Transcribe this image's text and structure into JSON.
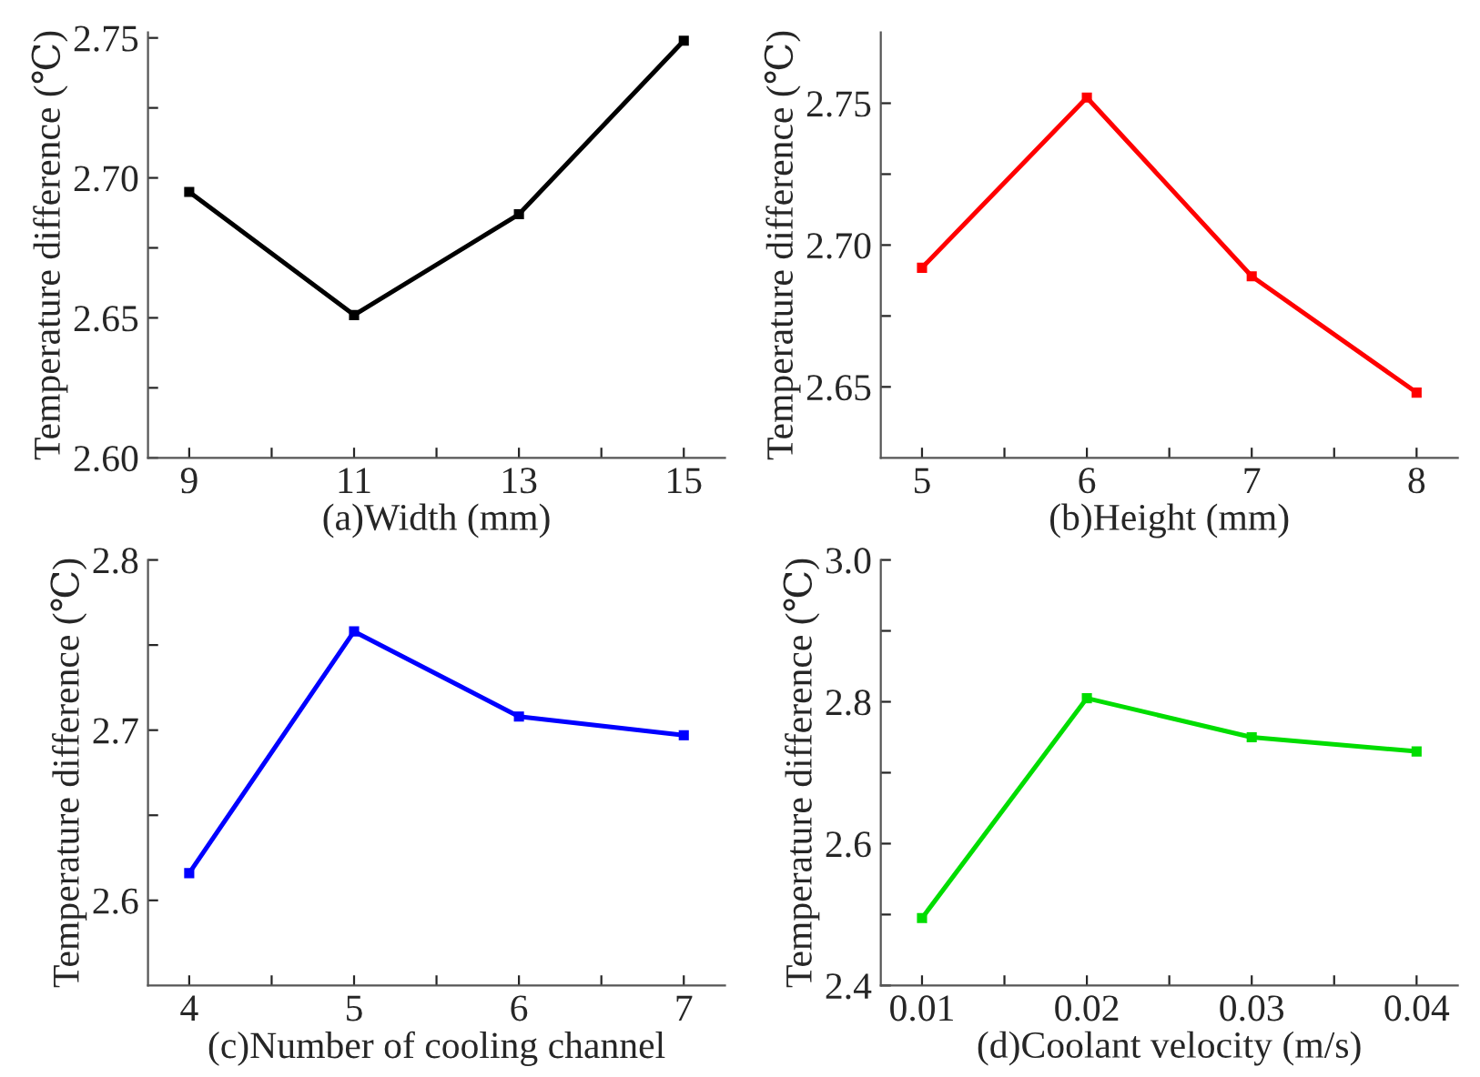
{
  "chart_data": [
    {
      "type": "line",
      "xlabel": "(a)Width (mm)",
      "ylabel": "Temperature difference (℃)",
      "x": [
        9,
        11,
        13,
        15
      ],
      "series": [
        {
          "color": "#000000",
          "values": [
            2.695,
            2.651,
            2.687,
            2.749
          ]
        }
      ],
      "marker": "square",
      "xlim": [
        8.5,
        15.5
      ],
      "ylim": [
        2.6,
        2.752
      ],
      "xticks": [
        9,
        {
          "value": 10,
          "label": null
        },
        11,
        {
          "value": 12,
          "label": null
        },
        13,
        {
          "value": 14,
          "label": null
        },
        15
      ],
      "yticks": [
        {
          "value": 2.6,
          "label": "2.60"
        },
        {
          "value": 2.625,
          "label": null
        },
        {
          "value": 2.65,
          "label": "2.65"
        },
        {
          "value": 2.675,
          "label": null
        },
        {
          "value": 2.7,
          "label": "2.70"
        },
        {
          "value": 2.725,
          "label": null
        },
        {
          "value": 2.75,
          "label": "2.75"
        }
      ]
    },
    {
      "type": "line",
      "xlabel": "(b)Height (mm)",
      "ylabel": "Temperature difference (℃)",
      "x": [
        5,
        6,
        7,
        8
      ],
      "series": [
        {
          "color": "#ff0000",
          "values": [
            2.692,
            2.752,
            2.689,
            2.648
          ]
        }
      ],
      "marker": "square",
      "xlim": [
        4.75,
        8.25
      ],
      "ylim": [
        2.625,
        2.775
      ],
      "xticks": [
        5,
        {
          "value": 5.5,
          "label": null
        },
        6,
        {
          "value": 6.5,
          "label": null
        },
        7,
        {
          "value": 7.5,
          "label": null
        },
        8
      ],
      "yticks": [
        {
          "value": 2.65,
          "label": "2.65"
        },
        {
          "value": 2.675,
          "label": null
        },
        {
          "value": 2.7,
          "label": "2.70"
        },
        {
          "value": 2.725,
          "label": null
        },
        {
          "value": 2.75,
          "label": "2.75"
        }
      ]
    },
    {
      "type": "line",
      "xlabel": "(c)Number of cooling channel",
      "ylabel": "Temperature difference (℃)",
      "x": [
        4,
        5,
        6,
        7
      ],
      "series": [
        {
          "color": "#0000ff",
          "values": [
            2.616,
            2.758,
            2.708,
            2.697
          ]
        }
      ],
      "marker": "square",
      "xlim": [
        3.75,
        7.25
      ],
      "ylim": [
        2.55,
        2.8
      ],
      "xticks": [
        4,
        {
          "value": 4.5,
          "label": null
        },
        5,
        {
          "value": 5.5,
          "label": null
        },
        6,
        {
          "value": 6.5,
          "label": null
        },
        7
      ],
      "yticks": [
        2.6,
        {
          "value": 2.65,
          "label": null
        },
        2.7,
        {
          "value": 2.75,
          "label": null
        },
        2.8
      ]
    },
    {
      "type": "line",
      "xlabel": "(d)Coolant velocity (m/s)",
      "ylabel": "Temperature difference (℃)",
      "x": [
        0.01,
        0.02,
        0.03,
        0.04
      ],
      "series": [
        {
          "color": "#00dd00",
          "values": [
            2.495,
            2.805,
            2.75,
            2.73
          ]
        }
      ],
      "marker": "square",
      "xlim": [
        0.0075,
        0.0425
      ],
      "ylim": [
        2.4,
        3.0
      ],
      "xticks": [
        0.01,
        {
          "value": 0.015,
          "label": null
        },
        0.02,
        {
          "value": 0.025,
          "label": null
        },
        0.03,
        {
          "value": 0.035,
          "label": null
        },
        0.04
      ],
      "yticks": [
        2.4,
        {
          "value": 2.5,
          "label": null
        },
        2.6,
        {
          "value": 2.7,
          "label": null
        },
        2.8,
        {
          "value": 2.9,
          "label": null
        },
        {
          "value": 3.0,
          "label": "3.0"
        }
      ]
    }
  ]
}
